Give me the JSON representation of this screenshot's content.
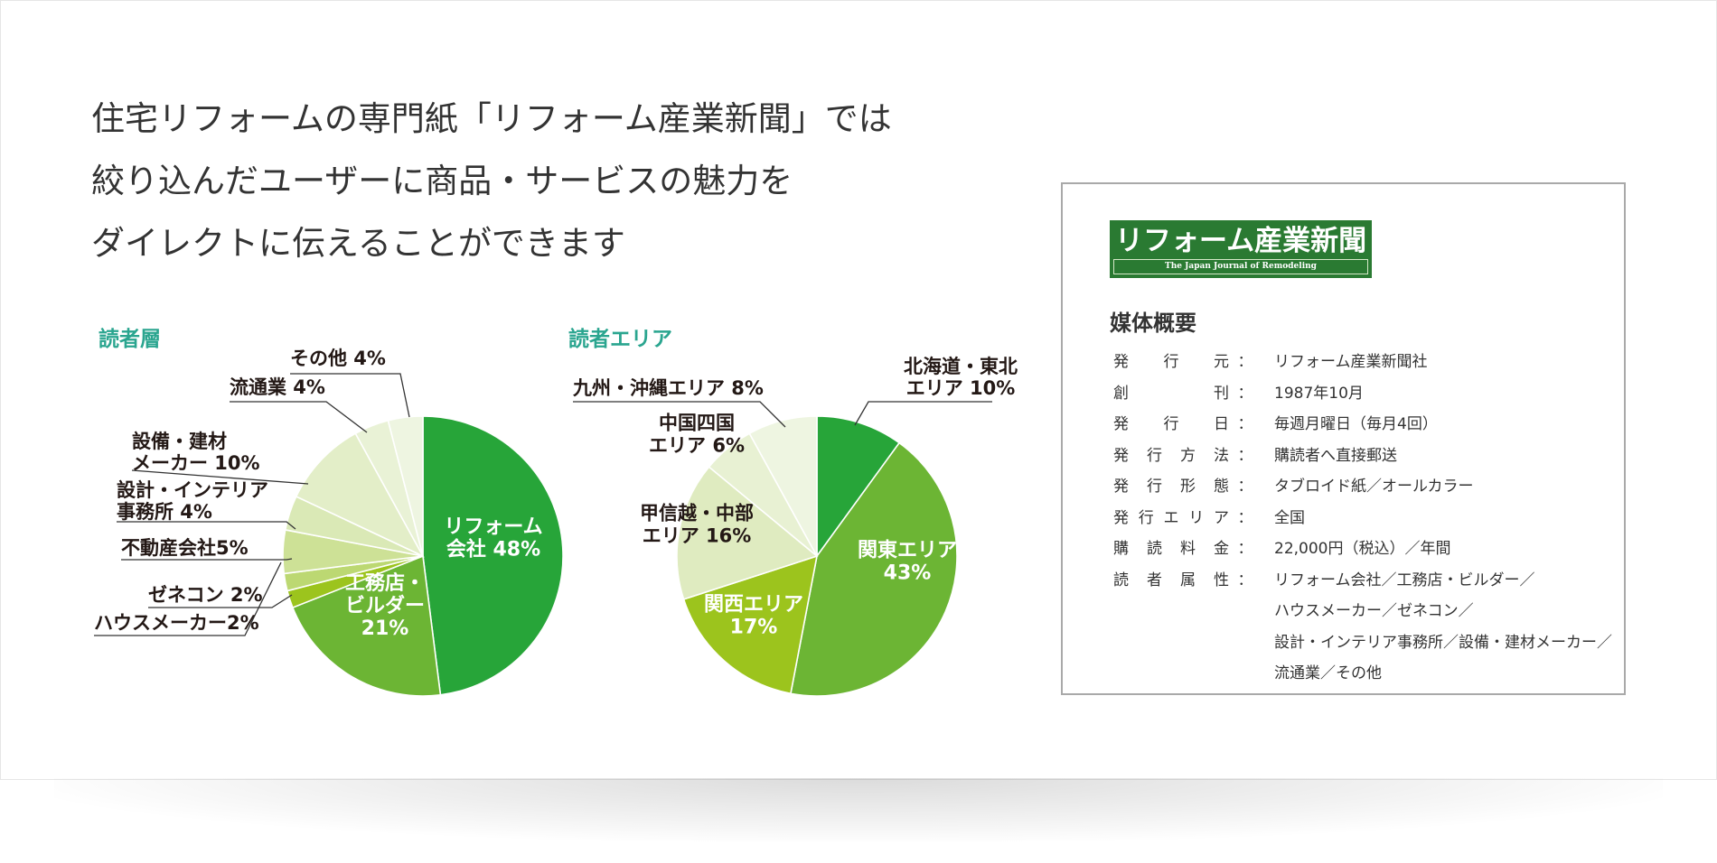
{
  "headline": {
    "lines": [
      "住宅リフォームの専門紙「リフォーム産業新聞」では",
      "絞り込んだユーザーに商品・サービスの魅力を",
      "ダイレクトに伝えることができます"
    ]
  },
  "chart_data": [
    {
      "type": "pie",
      "title": "読者層",
      "slices": [
        {
          "label": "リフォーム\n会社 48%",
          "value": 48,
          "color": "#27a539"
        },
        {
          "label": "工務店・\nビルダー\n21%",
          "value": 21,
          "color": "#6cb534"
        },
        {
          "label": "ハウスメーカー2%",
          "value": 2,
          "color": "#9cc41d"
        },
        {
          "label": "ゼネコン 2%",
          "value": 2,
          "color": "#bcd872"
        },
        {
          "label": "不動産会社5%",
          "value": 5,
          "color": "#cde196"
        },
        {
          "label": "設計・インテリア\n事務所 4%",
          "value": 4,
          "color": "#dae9b6"
        },
        {
          "label": "設備・建材\nメーカー 10%",
          "value": 10,
          "color": "#e3eec8"
        },
        {
          "label": "流通業 4%",
          "value": 4,
          "color": "#e9f2d6"
        },
        {
          "label": "その他 4%",
          "value": 4,
          "color": "#eef5e1"
        }
      ]
    },
    {
      "type": "pie",
      "title": "読者エリア",
      "slices": [
        {
          "label": "北海道・東北\nエリア 10%",
          "value": 10,
          "color": "#27a539"
        },
        {
          "label": "関東エリア\n43%",
          "value": 43,
          "color": "#6cb534"
        },
        {
          "label": "関西エリア\n17%",
          "value": 17,
          "color": "#9cc41d"
        },
        {
          "label": "甲信越・中部\nエリア 16%",
          "value": 16,
          "color": "#dfebc0"
        },
        {
          "label": "中国四国\nエリア 6%",
          "value": 6,
          "color": "#e8f1d3"
        },
        {
          "label": "九州・沖縄エリア 8%",
          "value": 8,
          "color": "#eef5e1"
        }
      ]
    }
  ],
  "info": {
    "logo_title": "リフォーム産業新聞",
    "logo_subtitle": "The Japan Journal of Remodeling",
    "heading": "媒体概要",
    "colon": "：",
    "rows": [
      {
        "key": "発行元",
        "value": "リフォーム産業新聞社"
      },
      {
        "key": "創刊",
        "value": "1987年10月"
      },
      {
        "key": "発行日",
        "value": "毎週月曜日（毎月4回）"
      },
      {
        "key": "発行方法",
        "value": "購読者へ直接郵送"
      },
      {
        "key": "発行形態",
        "value": "タブロイド紙／オールカラー"
      },
      {
        "key": "発行エリア",
        "value": "全国"
      },
      {
        "key": "購読料金",
        "value": "22,000円（税込）／年間"
      },
      {
        "key": "読者属性",
        "value": "リフォーム会社／工務店・ビルダー／\nハウスメーカー／ゼネコン／\n設計・インテリア事務所／設備・建材メーカー／\n流通業／その他"
      }
    ]
  },
  "colors": {
    "title_accent": "#2aa58f",
    "logo_green": "#2a7a32"
  }
}
